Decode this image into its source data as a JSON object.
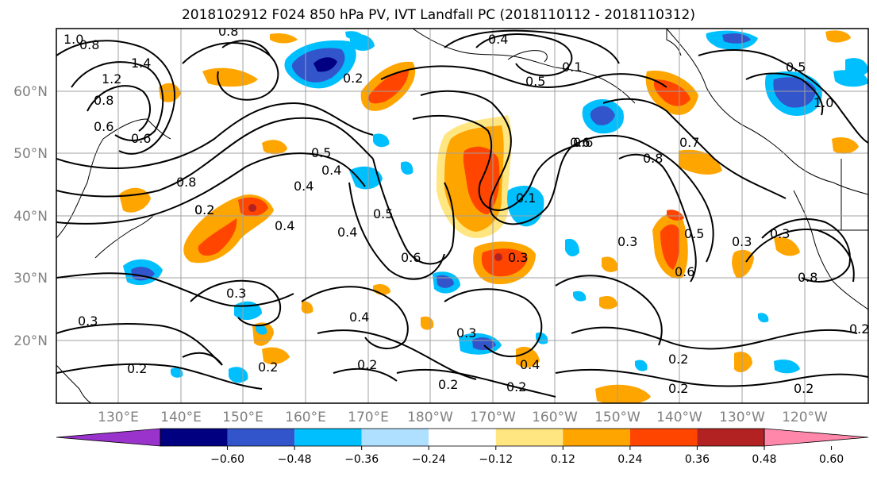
{
  "title": "2018102912 F024 850 hPa PV, IVT Landfall PC (2018110112 - 2018110312)",
  "map": {
    "latitude_labels": [
      "60°N",
      "50°N",
      "40°N",
      "30°N",
      "20°N"
    ],
    "longitude_labels": [
      "130°E",
      "140°E",
      "150°E",
      "160°E",
      "170°E",
      "180°W",
      "170°W",
      "160°W",
      "150°W",
      "140°W",
      "130°W",
      "120°W"
    ],
    "contour_labels": [
      "1.0",
      "0.8",
      "1.4",
      "1.2",
      "0.8",
      "0.6",
      "0.8",
      "0.6",
      "0.8",
      "0.2",
      "0.2",
      "0.4",
      "0.1",
      "0.5",
      "0.6",
      "0.4",
      "0.5",
      "0.4",
      "0.2",
      "0.4",
      "0.5",
      "0.4",
      "0.6",
      "0.3",
      "0.1",
      "0.6",
      "0.8",
      "0.7",
      "0.3",
      "0.5",
      "0.3",
      "0.6",
      "0.3",
      "0.5",
      "0.8",
      "1.0",
      "0.3",
      "0.2",
      "0.4",
      "0.3",
      "0.2",
      "0.2",
      "0.2",
      "0.4",
      "0.2",
      "0.2",
      "0.2",
      "0.3",
      "0.2",
      "0.2"
    ]
  },
  "colorbar": {
    "ticks": [
      "−0.60",
      "−0.48",
      "−0.36",
      "−0.24",
      "−0.12",
      "0.12",
      "0.24",
      "0.36",
      "0.48",
      "0.60"
    ],
    "colors": [
      "#9933cc",
      "#000080",
      "#3355cc",
      "#00bfff",
      "#b0e0ff",
      "#ffffff",
      "#ffe680",
      "#ffa500",
      "#ff4500",
      "#b22222",
      "#ff88aa"
    ]
  },
  "palette": {
    "neg_weak": "#b0e0ff",
    "neg_mid": "#00bfff",
    "neg_strong": "#3355cc",
    "neg_max": "#000080",
    "pos_weak": "#ffe680",
    "pos_mid": "#ffa500",
    "pos_strong": "#ff4500",
    "pos_max": "#b22222",
    "grid": "#a0a0a0",
    "axis_text": "#808080"
  }
}
